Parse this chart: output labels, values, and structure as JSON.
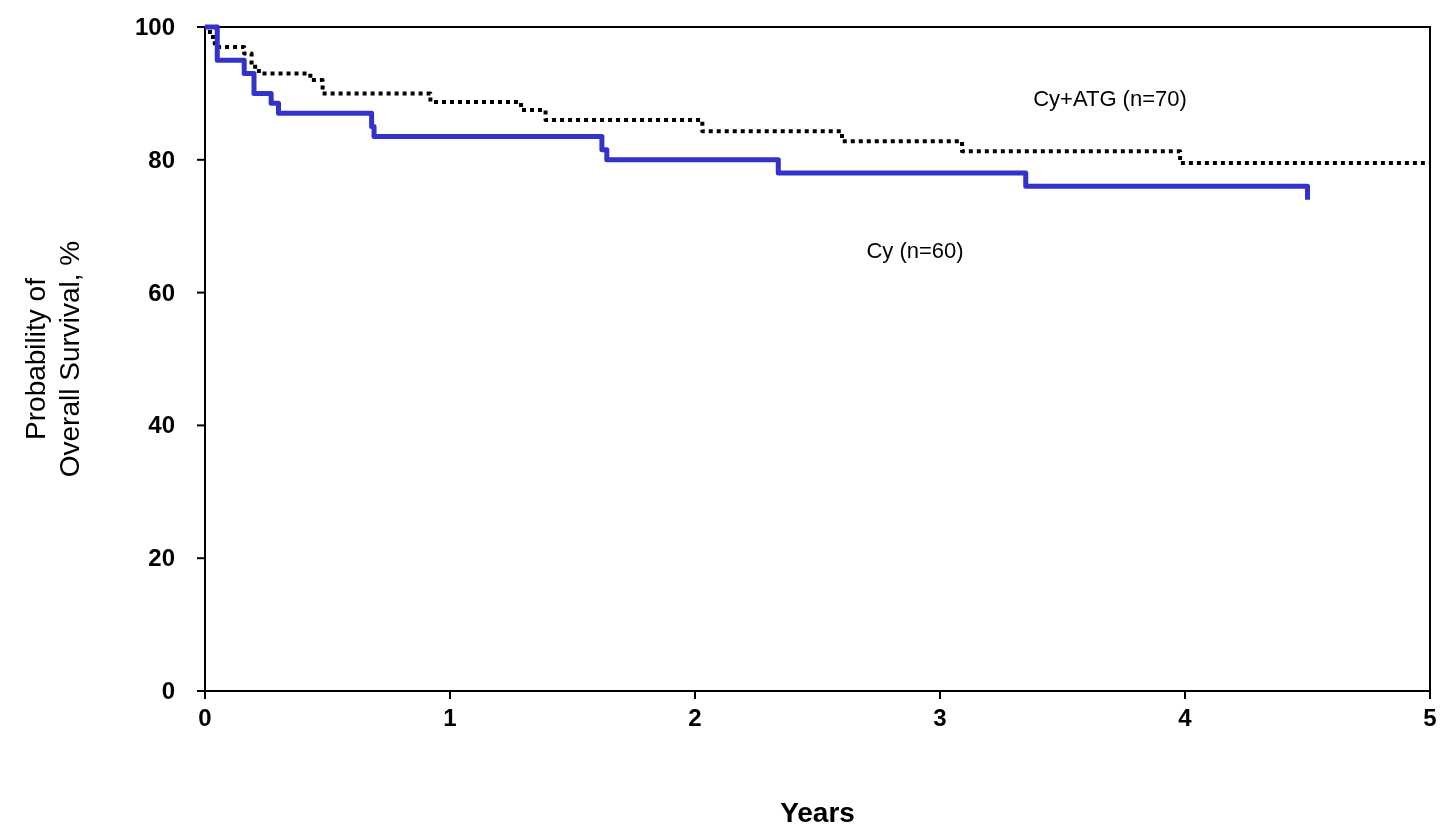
{
  "chart_data": {
    "type": "step",
    "xlabel": "Years",
    "ylabel": "Probability of\nOverall Survival, %",
    "xlim": [
      0,
      5
    ],
    "ylim": [
      0,
      100
    ],
    "xticks": [
      0,
      1,
      2,
      3,
      4,
      5
    ],
    "yticks": [
      0,
      20,
      40,
      60,
      80,
      100
    ],
    "grid": false,
    "series": [
      {
        "name": "Cy+ATG (n=70)",
        "color": "#000000",
        "line_style": "dotted",
        "x": [
          0,
          0.02,
          0.04,
          0.16,
          0.19,
          0.22,
          0.43,
          0.48,
          0.92,
          1.29,
          1.39,
          2.03,
          2.6,
          3.09,
          3.98,
          5
        ],
        "values": [
          100,
          98.5,
          97,
          96,
          94,
          93,
          92,
          90,
          88.7,
          87.5,
          86,
          84.3,
          82.8,
          81.3,
          79.5,
          79.5
        ]
      },
      {
        "name": "Cy (n=60)",
        "color": "#3333cc",
        "line_style": "solid",
        "x": [
          0,
          0.05,
          0.16,
          0.2,
          0.27,
          0.3,
          0.68,
          0.69,
          1.62,
          1.64,
          2.34,
          3.35,
          4.5
        ],
        "values": [
          100,
          95,
          93,
          90,
          88.5,
          87,
          85,
          83.5,
          81.5,
          80,
          78,
          76,
          74
        ]
      }
    ]
  }
}
